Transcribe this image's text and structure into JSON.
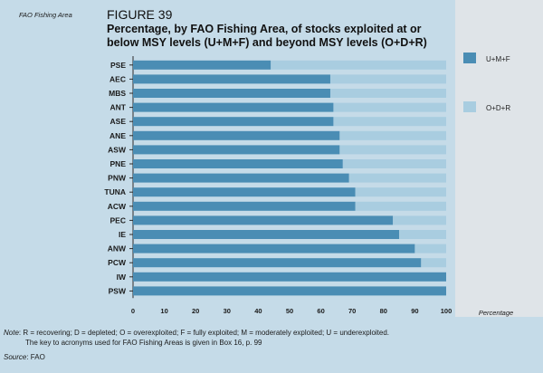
{
  "figure": {
    "label": "FIGURE 39",
    "title": "Percentage, by FAO Fishing Area, of stocks exploited at or below MSY levels (U+M+F) and beyond MSY levels (O+D+R)"
  },
  "chart_data": {
    "type": "bar",
    "orientation": "horizontal",
    "stacked": true,
    "ylabel": "FAO Fishing Area",
    "xlabel": "Percentage",
    "xlim": [
      0,
      100
    ],
    "xticks": [
      "0",
      "10",
      "20",
      "30",
      "40",
      "50",
      "60",
      "70",
      "80",
      "90",
      "100"
    ],
    "categories": [
      "PSE",
      "AEC",
      "MBS",
      "ANT",
      "ASE",
      "ANE",
      "ASW",
      "PNE",
      "PNW",
      "TUNA",
      "ACW",
      "PEC",
      "IE",
      "ANW",
      "PCW",
      "IW",
      "PSW"
    ],
    "series": [
      {
        "name": "U+M+F",
        "color": "#4a8db4",
        "values": [
          44,
          63,
          63,
          64,
          64,
          66,
          66,
          67,
          69,
          71,
          71,
          83,
          85,
          90,
          92,
          100,
          100
        ]
      },
      {
        "name": "O+D+R",
        "color": "#a9cde0",
        "values": [
          56,
          37,
          37,
          36,
          36,
          34,
          34,
          33,
          31,
          29,
          29,
          17,
          15,
          10,
          8,
          0,
          0
        ]
      }
    ],
    "legend": "right",
    "grid": false
  },
  "footer": {
    "note_label": "Note",
    "note_text": ": R = recovering; D = depleted; O = overexploited; F = fully exploited; M = moderately exploited; U = underexploited.",
    "note_line2": "The key to acronyms used for FAO Fishing Areas is given in Box 16, p. 99",
    "source_label": "Source",
    "source_text": ": FAO"
  }
}
